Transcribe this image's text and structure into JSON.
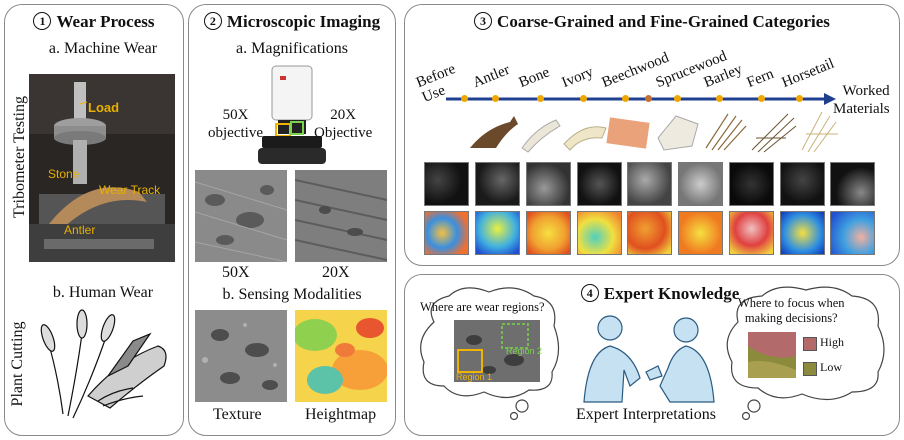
{
  "panel1": {
    "number": "1",
    "title": "Wear Process",
    "sub_a": "a. Machine Wear",
    "side_a": "Tribometer Testing",
    "photo_labels": {
      "load": "Load",
      "stone": "Stone",
      "wear_track": "Wear Track",
      "antler": "Antler"
    },
    "sub_b": "b. Human Wear",
    "side_b": "Plant Cutting"
  },
  "panel2": {
    "number": "2",
    "title": "Microscopic Imaging",
    "sub_a": "a. Magnifications",
    "obj_left": "50X\nobjective",
    "obj_right": "20X\nObjective",
    "img_left": "50X",
    "img_right": "20X",
    "sub_b": "b. Sensing Modalities",
    "mod_left": "Texture",
    "mod_right": "Heightmap"
  },
  "panel3": {
    "number": "3",
    "title": "Coarse-Grained and Fine-Grained Categories",
    "categories": [
      "Before Use",
      "Antler",
      "Bone",
      "Ivory",
      "Beechwood",
      "Sprucewood",
      "Barley",
      "Fern",
      "Horsetail"
    ],
    "arrow_label": "Worked\nMaterials",
    "colors": {
      "timeline": "#1f3f8f",
      "dot": "#f0a800"
    }
  },
  "panel4": {
    "number": "4",
    "title": "Expert Knowledge",
    "bubble_left": "Where are wear regions?",
    "region1": "Region 1",
    "region2": "Region 2",
    "bubble_right": "Where to focus when\nmaking decisions?",
    "legend_high": "High",
    "legend_low": "Low",
    "caption": "Expert Interpretations",
    "colors": {
      "high": "#b26a6a",
      "low": "#8c8a3c"
    }
  }
}
